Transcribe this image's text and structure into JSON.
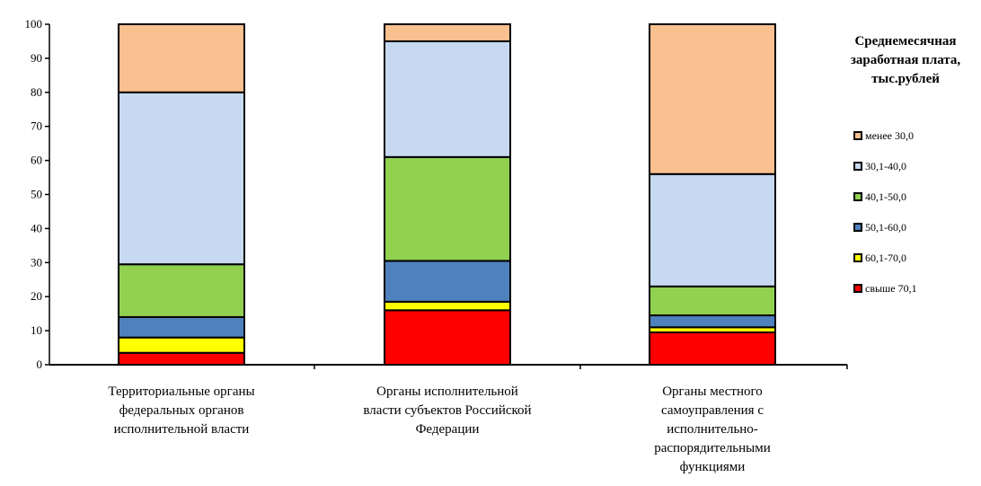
{
  "chart_data": {
    "type": "bar",
    "stacked": true,
    "categories": [
      [
        "Территориальные органы",
        "федеральных органов",
        "исполнительной власти"
      ],
      [
        "Органы исполнительной",
        "власти субъектов  Российской",
        "Федерации"
      ],
      [
        "Органы местного",
        "самоуправления с",
        "исполнительно-",
        "распорядительными",
        "функциями"
      ]
    ],
    "series": [
      {
        "name": "свыше 70,1",
        "color": "#ff0000",
        "values": [
          3.5,
          16,
          9.5
        ]
      },
      {
        "name": "60,1-70,0",
        "color": "#ffff00",
        "values": [
          4.5,
          2.5,
          1.5
        ]
      },
      {
        "name": "50,1-60,0",
        "color": "#4f81bd",
        "values": [
          6,
          12,
          3.5
        ]
      },
      {
        "name": "40,1-50,0",
        "color": "#92d050",
        "values": [
          15.5,
          30.5,
          8.5
        ]
      },
      {
        "name": "30,1-40,0",
        "color": "#c6d9f1",
        "values": [
          50.5,
          34,
          33
        ]
      },
      {
        "name": "менее 30,0",
        "color": "#fac090",
        "values": [
          20,
          5,
          44
        ]
      }
    ],
    "ylim": [
      0,
      100
    ],
    "yticks": [
      0,
      10,
      20,
      30,
      40,
      50,
      60,
      70,
      80,
      90,
      100
    ],
    "grid": false,
    "legend": {
      "title": [
        "Среднемесячная",
        "заработная плата,",
        "тыс.рублей"
      ],
      "position": "right",
      "order": [
        "менее 30,0",
        "30,1-40,0",
        "40,1-50,0",
        "50,1-60,0",
        "60,1-70,0",
        "свыше 70,1"
      ]
    }
  }
}
